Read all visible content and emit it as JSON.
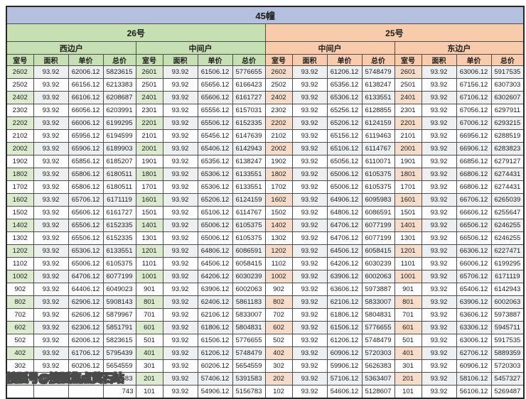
{
  "title": "45幢",
  "colors": {
    "title_band": "#b4c0dd",
    "building_26_band": "#c6e0b4",
    "building_25_band": "#f8cbad",
    "room_col_26": "#e2efda",
    "room_col_25": "#fce4d6"
  },
  "watermark": "搜狐号@搜狐焦点黄石站",
  "table": {
    "column_headers": [
      "室号",
      "面积",
      "单价",
      "总价"
    ],
    "buildings": [
      {
        "name": "26号",
        "theme": "green"
      },
      {
        "name": "25号",
        "theme": "peach"
      }
    ],
    "groups": [
      {
        "building": "26号",
        "unit_type": "西边户",
        "theme": "green",
        "rows": [
          [
            "2602",
            "93.92",
            "62006.12",
            "5823615"
          ],
          [
            "2502",
            "93.92",
            "66156.12",
            "6213383"
          ],
          [
            "2402",
            "93.92",
            "66106.12",
            "6208687"
          ],
          [
            "2302",
            "93.92",
            "66056.12",
            "6203991"
          ],
          [
            "2202",
            "93.92",
            "66006.12",
            "6199295"
          ],
          [
            "2102",
            "93.92",
            "65956.12",
            "6194599"
          ],
          [
            "2002",
            "93.92",
            "65906.12",
            "6189903"
          ],
          [
            "1902",
            "93.92",
            "65856.12",
            "6185207"
          ],
          [
            "1802",
            "93.92",
            "65806.12",
            "6180511"
          ],
          [
            "1702",
            "93.92",
            "65806.12",
            "6180511"
          ],
          [
            "1602",
            "93.92",
            "65706.12",
            "6171119"
          ],
          [
            "1502",
            "93.92",
            "65606.12",
            "6161727"
          ],
          [
            "1402",
            "93.92",
            "65506.12",
            "6152335"
          ],
          [
            "1302",
            "93.92",
            "65506.12",
            "6152335"
          ],
          [
            "1202",
            "93.92",
            "65306.12",
            "6133551"
          ],
          [
            "1102",
            "93.92",
            "65006.12",
            "6105375"
          ],
          [
            "1002",
            "93.92",
            "64706.12",
            "6077199"
          ],
          [
            "902",
            "93.92",
            "64406.12",
            "6049023"
          ],
          [
            "802",
            "93.92",
            "62906.12",
            "5908143"
          ],
          [
            "702",
            "93.92",
            "62606.12",
            "5879967"
          ],
          [
            "602",
            "93.92",
            "62306.12",
            "5851791"
          ],
          [
            "502",
            "93.92",
            "62006.12",
            "5823615"
          ],
          [
            "402",
            "93.92",
            "61706.12",
            "5795439"
          ],
          [
            "302",
            "93.92",
            "60206.12",
            "5654559"
          ],
          [
            "202",
            "93.92",
            "57406.12",
            "5391583"
          ],
          [
            "",
            "",
            "",
            "743"
          ]
        ]
      },
      {
        "building": "26号",
        "unit_type": "中间户",
        "theme": "green",
        "rows": [
          [
            "2601",
            "93.92",
            "61506.12",
            "5776655"
          ],
          [
            "2501",
            "93.92",
            "65656.12",
            "6166423"
          ],
          [
            "2401",
            "93.92",
            "65606.12",
            "6161727"
          ],
          [
            "2301",
            "93.92",
            "65556.12",
            "6157031"
          ],
          [
            "2201",
            "93.92",
            "65506.12",
            "6152335"
          ],
          [
            "2101",
            "93.92",
            "65456.12",
            "6147639"
          ],
          [
            "2001",
            "93.92",
            "65406.12",
            "6142943"
          ],
          [
            "1901",
            "93.92",
            "65356.12",
            "6138247"
          ],
          [
            "1801",
            "93.92",
            "65306.12",
            "6133551"
          ],
          [
            "1701",
            "93.92",
            "65306.12",
            "6133551"
          ],
          [
            "1601",
            "93.92",
            "65206.12",
            "6124159"
          ],
          [
            "1501",
            "93.92",
            "65106.12",
            "6114767"
          ],
          [
            "1401",
            "93.92",
            "65006.12",
            "6105375"
          ],
          [
            "1301",
            "93.92",
            "65006.12",
            "6105375"
          ],
          [
            "1201",
            "93.92",
            "64806.12",
            "6086591"
          ],
          [
            "1101",
            "93.92",
            "64506.12",
            "6058415"
          ],
          [
            "1001",
            "93.92",
            "64206.12",
            "6030239"
          ],
          [
            "901",
            "93.92",
            "63906.12",
            "6002063"
          ],
          [
            "801",
            "93.92",
            "62406.12",
            "5861183"
          ],
          [
            "701",
            "93.92",
            "62106.12",
            "5833007"
          ],
          [
            "601",
            "93.92",
            "61806.12",
            "5804831"
          ],
          [
            "501",
            "93.92",
            "61506.12",
            "5776655"
          ],
          [
            "401",
            "93.92",
            "61206.12",
            "5748479"
          ],
          [
            "301",
            "93.92",
            "60206.12",
            "5654559"
          ],
          [
            "201",
            "93.92",
            "57406.12",
            "5391583"
          ],
          [
            "101",
            "93.92",
            "54906.12",
            "5156783"
          ]
        ]
      },
      {
        "building": "25号",
        "unit_type": "中间户",
        "theme": "peach",
        "rows": [
          [
            "2602",
            "93.92",
            "61206.12",
            "5748479"
          ],
          [
            "2502",
            "93.92",
            "65356.12",
            "6138247"
          ],
          [
            "2402",
            "93.92",
            "65306.12",
            "6133551"
          ],
          [
            "2302",
            "93.92",
            "65256.12",
            "6128855"
          ],
          [
            "2202",
            "93.92",
            "65206.12",
            "6124159"
          ],
          [
            "2102",
            "93.92",
            "65156.12",
            "6119463"
          ],
          [
            "2002",
            "93.92",
            "65106.12",
            "6114767"
          ],
          [
            "1902",
            "93.92",
            "65056.12",
            "6110071"
          ],
          [
            "1802",
            "93.92",
            "65006.12",
            "6105375"
          ],
          [
            "1702",
            "93.92",
            "65006.12",
            "6105375"
          ],
          [
            "1602",
            "93.92",
            "64906.12",
            "6095983"
          ],
          [
            "1502",
            "93.92",
            "64806.12",
            "6086591"
          ],
          [
            "1402",
            "93.92",
            "64706.12",
            "6077199"
          ],
          [
            "1302",
            "93.92",
            "64706.12",
            "6077199"
          ],
          [
            "1202",
            "93.92",
            "64506.12",
            "6058415"
          ],
          [
            "1102",
            "93.92",
            "64206.12",
            "6030239"
          ],
          [
            "1002",
            "93.92",
            "63906.12",
            "6002063"
          ],
          [
            "902",
            "93.92",
            "63606.12",
            "5973887"
          ],
          [
            "802",
            "93.92",
            "62106.12",
            "5833007"
          ],
          [
            "702",
            "93.92",
            "61806.12",
            "5804831"
          ],
          [
            "602",
            "93.92",
            "61506.12",
            "5776655"
          ],
          [
            "502",
            "93.92",
            "61206.12",
            "5748479"
          ],
          [
            "402",
            "93.92",
            "60906.12",
            "5720303"
          ],
          [
            "302",
            "93.92",
            "59906.12",
            "5626383"
          ],
          [
            "202",
            "93.92",
            "57106.12",
            "5363407"
          ],
          [
            "102",
            "93.92",
            "54606.12",
            "5128607"
          ]
        ]
      },
      {
        "building": "25号",
        "unit_type": "东边户",
        "theme": "peach",
        "rows": [
          [
            "2601",
            "93.92",
            "63006.12",
            "5917535"
          ],
          [
            "2501",
            "93.92",
            "67156.12",
            "6307303"
          ],
          [
            "2401",
            "93.92",
            "67106.12",
            "6302607"
          ],
          [
            "2301",
            "93.92",
            "67056.12",
            "6297911"
          ],
          [
            "2201",
            "93.92",
            "67006.12",
            "6293215"
          ],
          [
            "2101",
            "93.92",
            "66956.12",
            "6288519"
          ],
          [
            "2001",
            "93.92",
            "66906.12",
            "6283823"
          ],
          [
            "1901",
            "93.92",
            "66856.12",
            "6279127"
          ],
          [
            "1801",
            "93.92",
            "66806.12",
            "6274431"
          ],
          [
            "1701",
            "93.92",
            "66806.12",
            "6274431"
          ],
          [
            "1601",
            "93.92",
            "66706.12",
            "6265039"
          ],
          [
            "1501",
            "93.92",
            "66606.12",
            "6255647"
          ],
          [
            "1401",
            "93.92",
            "66506.12",
            "6246255"
          ],
          [
            "1301",
            "93.92",
            "66506.12",
            "6246255"
          ],
          [
            "1201",
            "93.92",
            "66306.12",
            "6227471"
          ],
          [
            "1101",
            "93.92",
            "66006.12",
            "6199295"
          ],
          [
            "1001",
            "93.92",
            "65706.12",
            "6171119"
          ],
          [
            "901",
            "93.92",
            "65406.12",
            "6142943"
          ],
          [
            "801",
            "93.92",
            "63906.12",
            "6002063"
          ],
          [
            "701",
            "93.92",
            "63606.12",
            "5973887"
          ],
          [
            "601",
            "93.92",
            "63306.12",
            "5945711"
          ],
          [
            "501",
            "93.92",
            "63006.12",
            "5917535"
          ],
          [
            "401",
            "93.92",
            "62706.12",
            "5889359"
          ],
          [
            "301",
            "93.92",
            "60906.12",
            "5720303"
          ],
          [
            "201",
            "93.92",
            "58106.12",
            "5457327"
          ],
          [
            "101",
            "93.92",
            "56106.12",
            "5269487"
          ]
        ]
      }
    ]
  }
}
